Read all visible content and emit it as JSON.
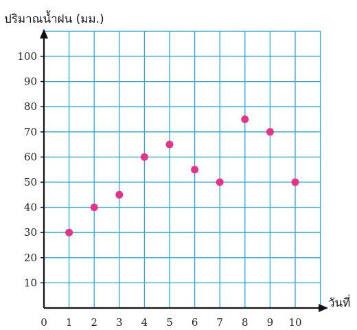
{
  "chart_data": {
    "type": "scatter",
    "title": "",
    "xlabel": "วันที่",
    "ylabel": "ปริมาณน้ำฝน (มม.)",
    "x": [
      1,
      2,
      3,
      4,
      5,
      6,
      7,
      8,
      9,
      10
    ],
    "y": [
      30,
      40,
      45,
      60,
      65,
      55,
      50,
      75,
      70,
      50
    ],
    "xlim": [
      0,
      11
    ],
    "ylim": [
      0,
      110
    ],
    "x_ticks": [
      "0",
      "1",
      "2",
      "3",
      "4",
      "5",
      "6",
      "7",
      "8",
      "9",
      "10"
    ],
    "y_ticks": [
      "10",
      "20",
      "30",
      "40",
      "50",
      "60",
      "70",
      "80",
      "90",
      "100"
    ],
    "grid": true,
    "grid_color": "#29a8e0",
    "point_color": "#e5338a",
    "axis_color": "#111111"
  }
}
